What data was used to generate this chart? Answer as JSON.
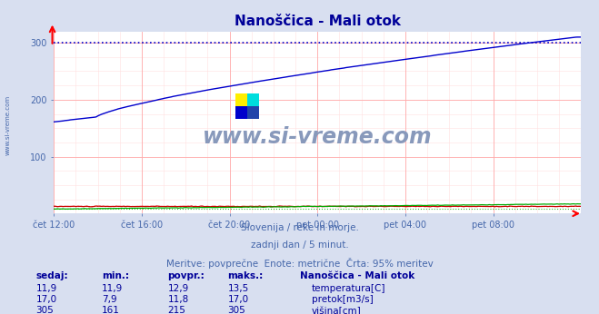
{
  "title": "Nanoščica - Mali otok",
  "subtitle_lines": [
    "Slovenija / reke in morje.",
    "zadnji dan / 5 minut.",
    "Meritve: povprečne  Enote: metrične  Črta: 95% meritev"
  ],
  "bg_color": "#d8dff0",
  "plot_bg_color": "#ffffff",
  "grid_color_major": "#ffaaaa",
  "grid_color_minor": "#ffe0e0",
  "x_labels": [
    "čet 12:00",
    "čet 16:00",
    "čet 20:00",
    "pet 00:00",
    "pet 04:00",
    "pet 08:00"
  ],
  "x_ticks_normalized": [
    0.0,
    0.1667,
    0.3333,
    0.5,
    0.6667,
    0.8333
  ],
  "n_points": 288,
  "ylim": [
    0,
    320
  ],
  "yticks": [
    100,
    200,
    300
  ],
  "temperatura_color": "#cc0000",
  "pretok_color": "#00aa00",
  "visina_color": "#0000cc",
  "dotted_line_color": "#0000cc",
  "watermark_text": "www.si-vreme.com",
  "watermark_color": "#8899bb",
  "left_label": "www.si-vreme.com",
  "table_headers": [
    "sedaj:",
    "min.:",
    "povpr.:",
    "maks.:"
  ],
  "table_col1": [
    "11,9",
    "17,0",
    "305"
  ],
  "table_col2": [
    "11,9",
    "7,9",
    "161"
  ],
  "table_col3": [
    "12,9",
    "11,8",
    "215"
  ],
  "table_col4": [
    "13,5",
    "17,0",
    "305"
  ],
  "row_labels": [
    "temperatura[C]",
    "pretok[m3/s]",
    "višina[cm]"
  ],
  "legend_station": "Nanoščica - Mali otok",
  "title_color": "#000099",
  "subtitle_color": "#4466aa",
  "table_color": "#000099"
}
